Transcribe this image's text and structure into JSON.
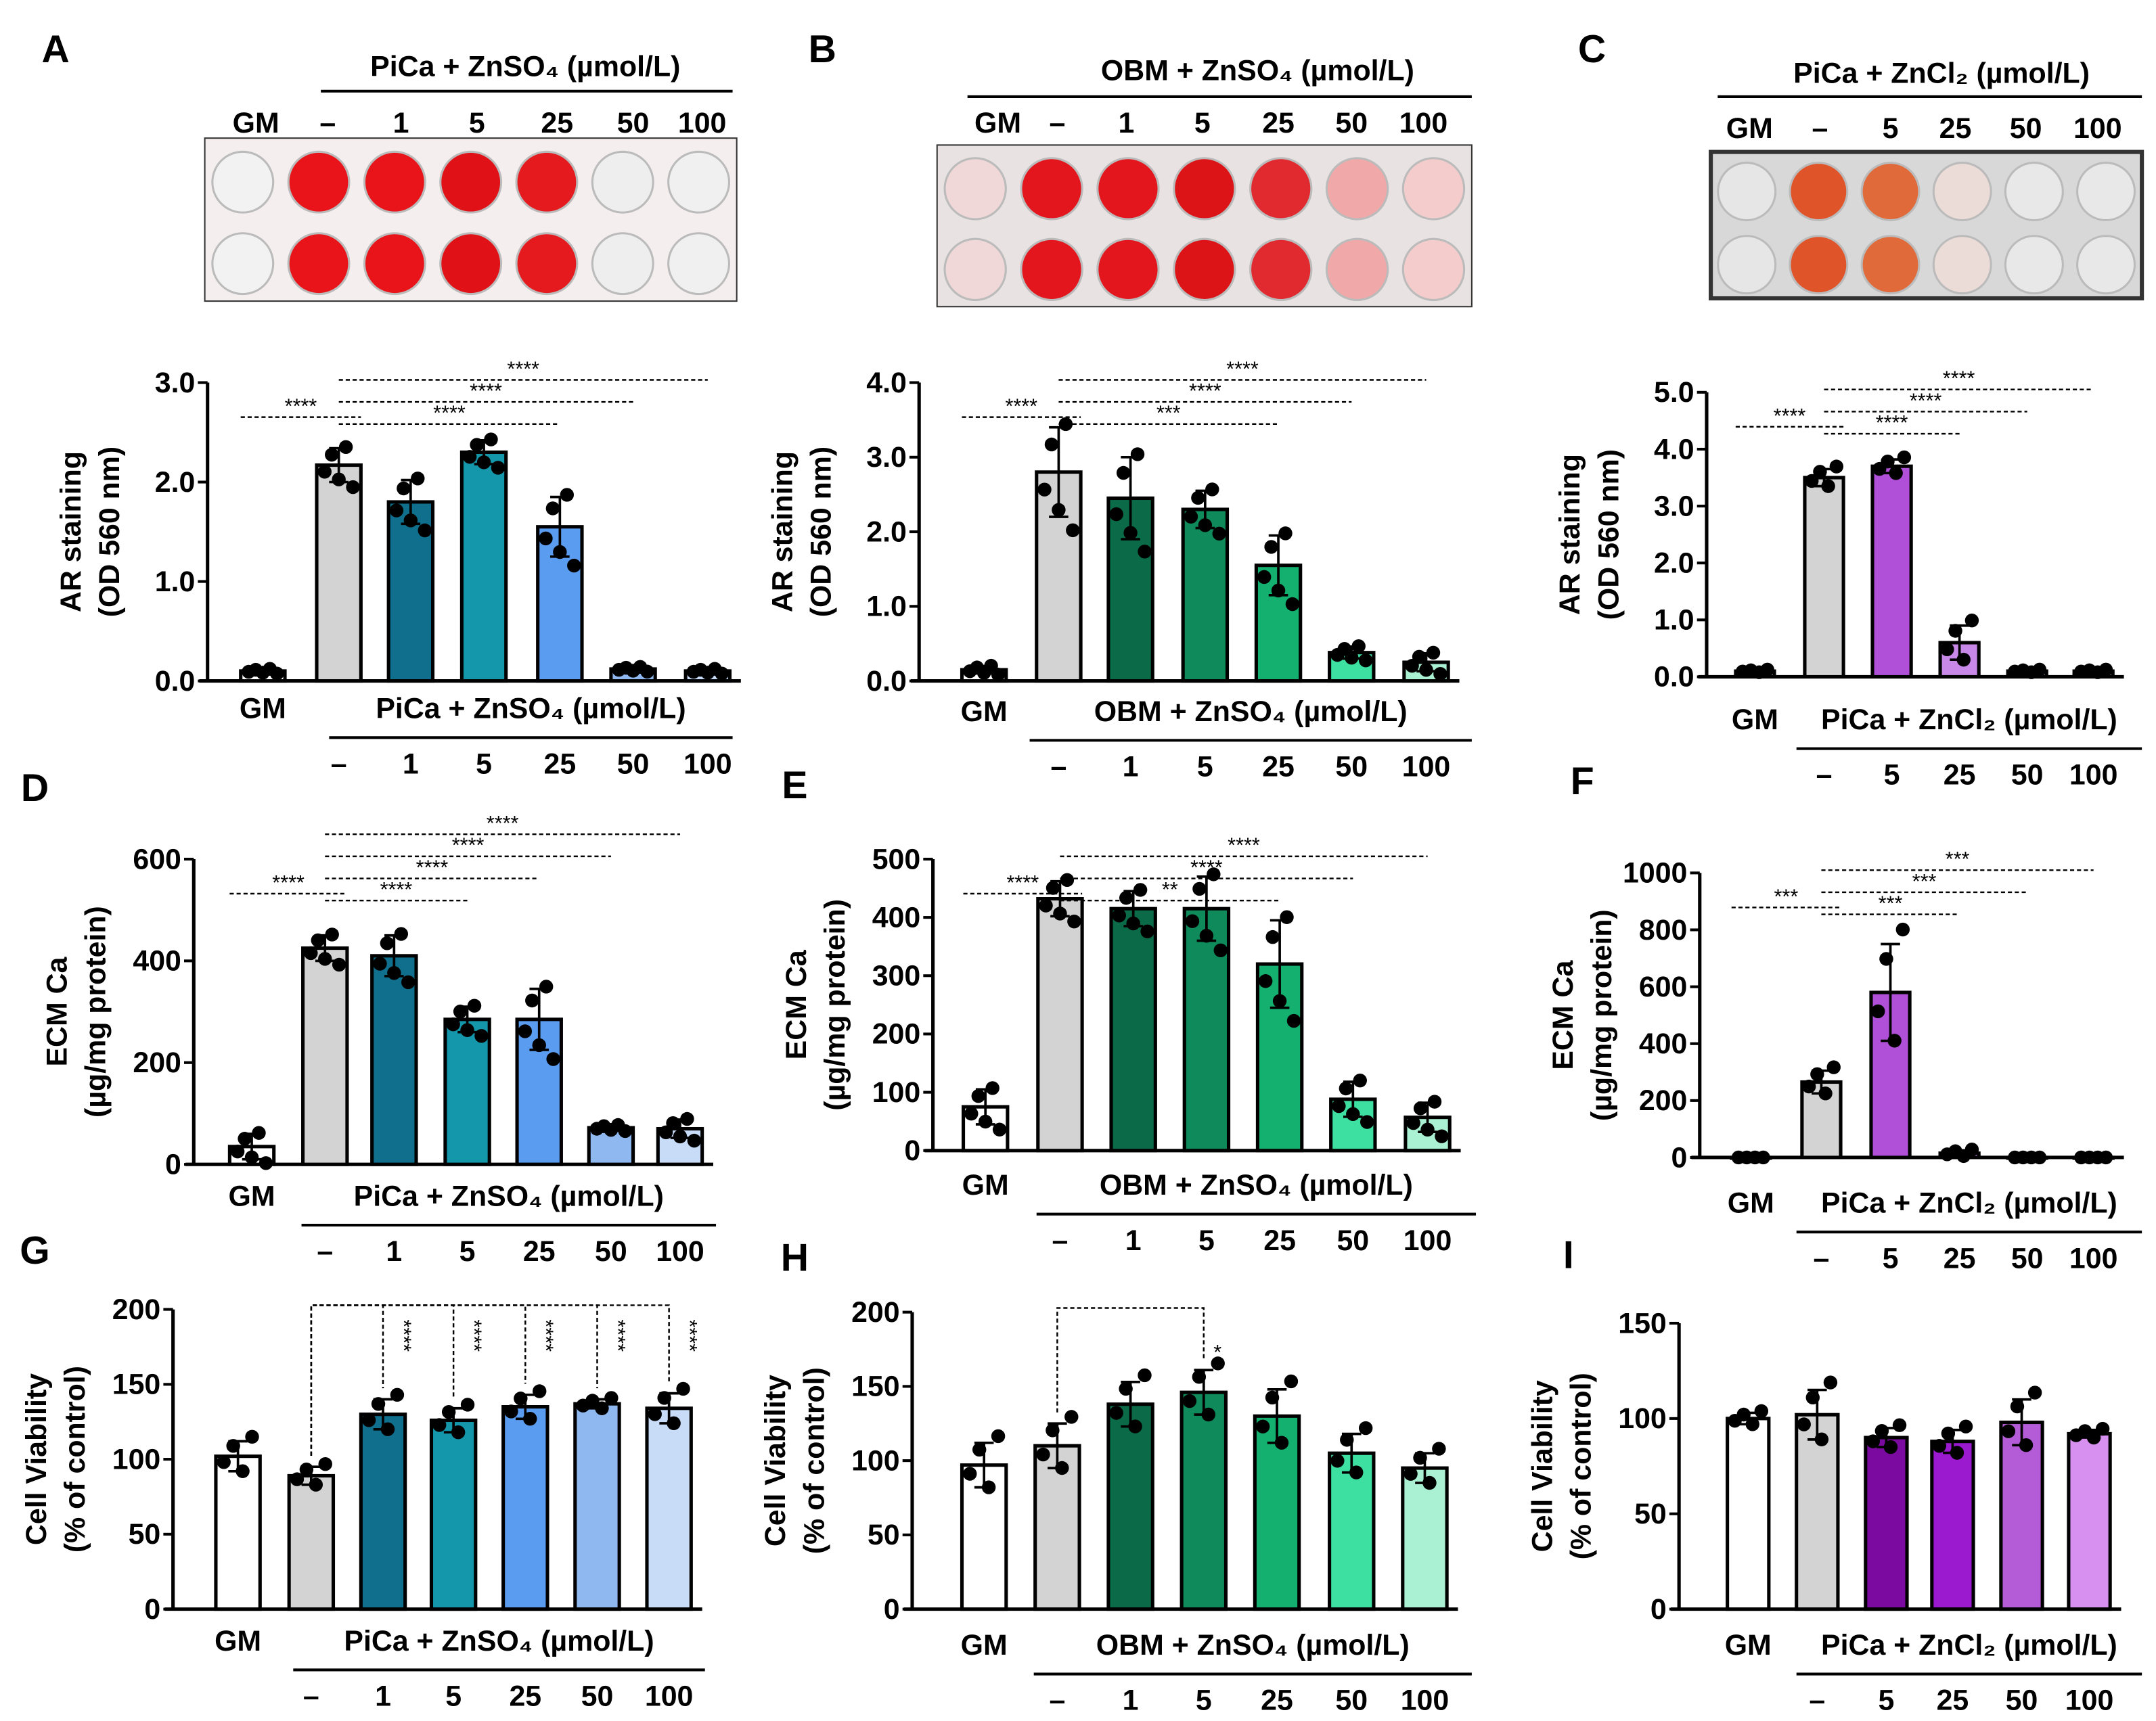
{
  "plates": [
    {
      "id": "A",
      "header": "PiCa + ZnSO₄ (µmol/L)",
      "labels": [
        "GM",
        "–",
        "1",
        "5",
        "25",
        "50",
        "100"
      ],
      "well_colors": [
        "#f2f2f2",
        "#e8141a",
        "#e8141a",
        "#e01218",
        "#e51a1e",
        "#eeeeee",
        "#f0f0f0"
      ],
      "plate_color": "#f4eeee"
    },
    {
      "id": "B",
      "header": "OBM + ZnSO₄ (µmol/L)",
      "labels": [
        "GM",
        "–",
        "1",
        "5",
        "25",
        "50",
        "100"
      ],
      "well_colors": [
        "#f0d8d8",
        "#e2161c",
        "#e2161c",
        "#dc1418",
        "#e02a30",
        "#f0a8a8",
        "#f4cccc"
      ],
      "plate_color": "#e8e2e2"
    },
    {
      "id": "C",
      "header": "PiCa + ZnCl₂ (µmol/L)",
      "labels": [
        "GM",
        "–",
        "5",
        "25",
        "50",
        "100"
      ],
      "well_colors": [
        "#e6e6e6",
        "#e0542a",
        "#e06a3a",
        "#ecdcd8",
        "#e8e8e8",
        "#e8e8e8"
      ],
      "plate_color": "#d8d8d8"
    }
  ],
  "chart_data": [
    {
      "id": "A",
      "type": "bar",
      "letter": "A",
      "ylabel": [
        "AR staining",
        "(OD 560 nm)"
      ],
      "ylim": [
        0,
        3
      ],
      "ticks": [
        "0.0",
        "1.0",
        "2.0",
        "3.0"
      ],
      "tick_values": [
        0,
        1,
        2,
        3
      ],
      "group_label": "PiCa + ZnSO₄ (µmol/L)",
      "categories": [
        "GM",
        "–",
        "1",
        "5",
        "25",
        "50",
        "100"
      ],
      "values": [
        0.1,
        2.17,
        1.8,
        2.3,
        1.55,
        0.12,
        0.1
      ],
      "errors": [
        0.02,
        0.17,
        0.22,
        0.12,
        0.3,
        0.02,
        0.02
      ],
      "n": 5,
      "colors": [
        "#ffffff",
        "#d3d3d3",
        "#0f6f8c",
        "#1497aa",
        "#5a9cf0",
        "#8fb8f0",
        "#c8dcf8"
      ],
      "sig": [
        {
          "from": 0,
          "to": 1,
          "label": "****"
        },
        {
          "from": 1,
          "to": 4,
          "label": "****"
        },
        {
          "from": 1,
          "to": 5,
          "label": "****"
        },
        {
          "from": 1,
          "to": 6,
          "label": "****"
        }
      ]
    },
    {
      "id": "B",
      "type": "bar",
      "letter": "B",
      "ylabel": [
        "AR staining",
        "(OD 560 nm)"
      ],
      "ylim": [
        0,
        4
      ],
      "ticks": [
        "0.0",
        "1.0",
        "2.0",
        "3.0",
        "4.0"
      ],
      "tick_values": [
        0,
        1,
        2,
        3,
        4
      ],
      "group_label": "OBM + ZnSO₄ (µmol/L)",
      "categories": [
        "GM",
        "–",
        "1",
        "5",
        "25",
        "50",
        "100"
      ],
      "values": [
        0.15,
        2.8,
        2.45,
        2.3,
        1.55,
        0.38,
        0.25
      ],
      "errors": [
        0.05,
        0.6,
        0.55,
        0.25,
        0.4,
        0.08,
        0.12
      ],
      "n": 5,
      "colors": [
        "#ffffff",
        "#d3d3d3",
        "#0b6b48",
        "#0f8a5a",
        "#14b070",
        "#3ee0a2",
        "#aaf0d2"
      ],
      "sig": [
        {
          "from": 0,
          "to": 1,
          "label": "****"
        },
        {
          "from": 1,
          "to": 4,
          "label": "***"
        },
        {
          "from": 1,
          "to": 5,
          "label": "****"
        },
        {
          "from": 1,
          "to": 6,
          "label": "****"
        }
      ]
    },
    {
      "id": "C",
      "type": "bar",
      "letter": "C",
      "ylabel": [
        "AR staining",
        "(OD 560 nm)"
      ],
      "ylim": [
        0,
        5
      ],
      "ticks": [
        "0.0",
        "1.0",
        "2.0",
        "3.0",
        "4.0",
        "5.0"
      ],
      "tick_values": [
        0,
        1,
        2,
        3,
        4,
        5
      ],
      "group_label": "PiCa + ZnCl₂ (µmol/L)",
      "categories": [
        "GM",
        "–",
        "5",
        "25",
        "50",
        "100"
      ],
      "values": [
        0.1,
        3.5,
        3.7,
        0.6,
        0.1,
        0.1
      ],
      "errors": [
        0.02,
        0.15,
        0.12,
        0.3,
        0.02,
        0.02
      ],
      "n": 4,
      "colors": [
        "#ffffff",
        "#d3d3d3",
        "#b050d8",
        "#c888e8",
        "#dcaaf0",
        "#ecd0f8"
      ],
      "sig": [
        {
          "from": 0,
          "to": 1,
          "label": "****"
        },
        {
          "from": 1,
          "to": 3,
          "label": "****"
        },
        {
          "from": 1,
          "to": 4,
          "label": "****"
        },
        {
          "from": 1,
          "to": 5,
          "label": "****"
        }
      ]
    },
    {
      "id": "D",
      "type": "bar",
      "letter": "D",
      "ylabel": [
        "ECM Ca",
        "(µg/mg protein)"
      ],
      "ylim": [
        0,
        600
      ],
      "ticks": [
        "0",
        "200",
        "400",
        "600"
      ],
      "tick_values": [
        0,
        200,
        400,
        600
      ],
      "group_label": "PiCa + ZnSO₄ (µmol/L)",
      "categories": [
        "GM",
        "–",
        "1",
        "5",
        "25",
        "50",
        "100"
      ],
      "values": [
        35,
        425,
        410,
        285,
        285,
        72,
        70
      ],
      "errors": [
        25,
        25,
        40,
        25,
        60,
        5,
        18
      ],
      "n": 5,
      "colors": [
        "#ffffff",
        "#d3d3d3",
        "#0f6f8c",
        "#1497aa",
        "#5a9cf0",
        "#8fb8f0",
        "#c8dcf8"
      ],
      "sig": [
        {
          "from": 0,
          "to": 1,
          "label": "****"
        },
        {
          "from": 1,
          "to": 3,
          "label": "****"
        },
        {
          "from": 1,
          "to": 4,
          "label": "****"
        },
        {
          "from": 1,
          "to": 5,
          "label": "****"
        },
        {
          "from": 1,
          "to": 6,
          "label": "****"
        }
      ]
    },
    {
      "id": "E",
      "type": "bar",
      "letter": "E",
      "ylabel": [
        "ECM Ca",
        "(µg/mg protein)"
      ],
      "ylim": [
        0,
        500
      ],
      "ticks": [
        "0",
        "100",
        "200",
        "300",
        "400",
        "500"
      ],
      "tick_values": [
        0,
        100,
        200,
        300,
        400,
        500
      ],
      "group_label": "OBM + ZnSO₄ (µmol/L)",
      "categories": [
        "GM",
        "–",
        "1",
        "5",
        "25",
        "50",
        "100"
      ],
      "values": [
        75,
        432,
        415,
        415,
        320,
        88,
        57
      ],
      "errors": [
        30,
        30,
        30,
        55,
        75,
        30,
        25
      ],
      "n": 5,
      "colors": [
        "#ffffff",
        "#d3d3d3",
        "#0b6b48",
        "#0f8a5a",
        "#14b070",
        "#3ee0a2",
        "#aaf0d2"
      ],
      "sig": [
        {
          "from": 0,
          "to": 1,
          "label": "****"
        },
        {
          "from": 1,
          "to": 4,
          "label": "**"
        },
        {
          "from": 1,
          "to": 5,
          "label": "****"
        },
        {
          "from": 1,
          "to": 6,
          "label": "****"
        }
      ]
    },
    {
      "id": "F",
      "type": "bar",
      "letter": "F",
      "ylabel": [
        "ECM Ca",
        "(µg/mg protein)"
      ],
      "ylim": [
        0,
        1000
      ],
      "ticks": [
        "0",
        "200",
        "400",
        "600",
        "800",
        "1000"
      ],
      "tick_values": [
        0,
        200,
        400,
        600,
        800,
        1000
      ],
      "group_label": "PiCa + ZnCl₂ (µmol/L)",
      "categories": [
        "GM",
        "–",
        "5",
        "25",
        "50",
        "100"
      ],
      "values": [
        0,
        265,
        580,
        15,
        0,
        0
      ],
      "errors": [
        0,
        40,
        170,
        10,
        0,
        0
      ],
      "n": 4,
      "colors": [
        "#ffffff",
        "#d3d3d3",
        "#b050d8",
        "#c888e8",
        "#dcaaf0",
        "#ecd0f8"
      ],
      "sig": [
        {
          "from": 0,
          "to": 1,
          "label": "***"
        },
        {
          "from": 1,
          "to": 3,
          "label": "***"
        },
        {
          "from": 1,
          "to": 4,
          "label": "***"
        },
        {
          "from": 1,
          "to": 5,
          "label": "***"
        }
      ]
    },
    {
      "id": "G",
      "type": "bar",
      "letter": "G",
      "ylabel": [
        "Cell Viability",
        "(% of control)"
      ],
      "ylim": [
        0,
        200
      ],
      "ticks": [
        "0",
        "50",
        "100",
        "150",
        "200"
      ],
      "tick_values": [
        0,
        50,
        100,
        150,
        200
      ],
      "group_label": "PiCa + ZnSO₄ (µmol/L)",
      "categories": [
        "GM",
        "–",
        "1",
        "5",
        "25",
        "50",
        "100"
      ],
      "values": [
        102,
        89,
        130,
        126,
        135,
        137,
        134
      ],
      "errors": [
        10,
        6,
        10,
        8,
        8,
        3,
        10
      ],
      "n": 4,
      "colors": [
        "#ffffff",
        "#d3d3d3",
        "#0f6f8c",
        "#1497aa",
        "#5a9cf0",
        "#8fb8f0",
        "#c8dcf8"
      ],
      "sig_vertical": [
        {
          "from": 1,
          "to": 2,
          "label": "****"
        },
        {
          "from": 1,
          "to": 3,
          "label": "****"
        },
        {
          "from": 1,
          "to": 4,
          "label": "****"
        },
        {
          "from": 1,
          "to": 5,
          "label": "****"
        },
        {
          "from": 1,
          "to": 6,
          "label": "****"
        }
      ]
    },
    {
      "id": "H",
      "type": "bar",
      "letter": "H",
      "ylabel": [
        "Cell Viability",
        "(% of control)"
      ],
      "ylim": [
        0,
        200
      ],
      "ticks": [
        "0",
        "50",
        "100",
        "150",
        "200"
      ],
      "tick_values": [
        0,
        50,
        100,
        150,
        200
      ],
      "group_label": "OBM + ZnSO₄ (µmol/L)",
      "categories": [
        "GM",
        "–",
        "1",
        "5",
        "25",
        "50",
        "100"
      ],
      "values": [
        97,
        110,
        138,
        146,
        130,
        105,
        95
      ],
      "errors": [
        15,
        15,
        15,
        15,
        18,
        13,
        10
      ],
      "n": 4,
      "colors": [
        "#ffffff",
        "#d3d3d3",
        "#0b6b48",
        "#0f8a5a",
        "#14b070",
        "#3ee0a2",
        "#aaf0d2"
      ],
      "sig_vertical": [
        {
          "from": 1,
          "to": 3,
          "label": "*"
        }
      ]
    },
    {
      "id": "I",
      "type": "bar",
      "letter": "I",
      "ylabel": [
        "Cell Viability",
        "(% of control)"
      ],
      "ylim": [
        0,
        150
      ],
      "ticks": [
        "0",
        "50",
        "100",
        "150"
      ],
      "tick_values": [
        0,
        50,
        100,
        150
      ],
      "group_label": "PiCa + ZnCl₂ (µmol/L)",
      "categories": [
        "GM",
        "–",
        "5",
        "25",
        "50",
        "100"
      ],
      "values": [
        100,
        102,
        90,
        88,
        98,
        92
      ],
      "errors": [
        3,
        13,
        5,
        6,
        12,
        2
      ],
      "n": 4,
      "colors": [
        "#ffffff",
        "#d3d3d3",
        "#7a0aa0",
        "#9b1ad0",
        "#b45cd8",
        "#d890f0"
      ],
      "sig_vertical": []
    }
  ]
}
